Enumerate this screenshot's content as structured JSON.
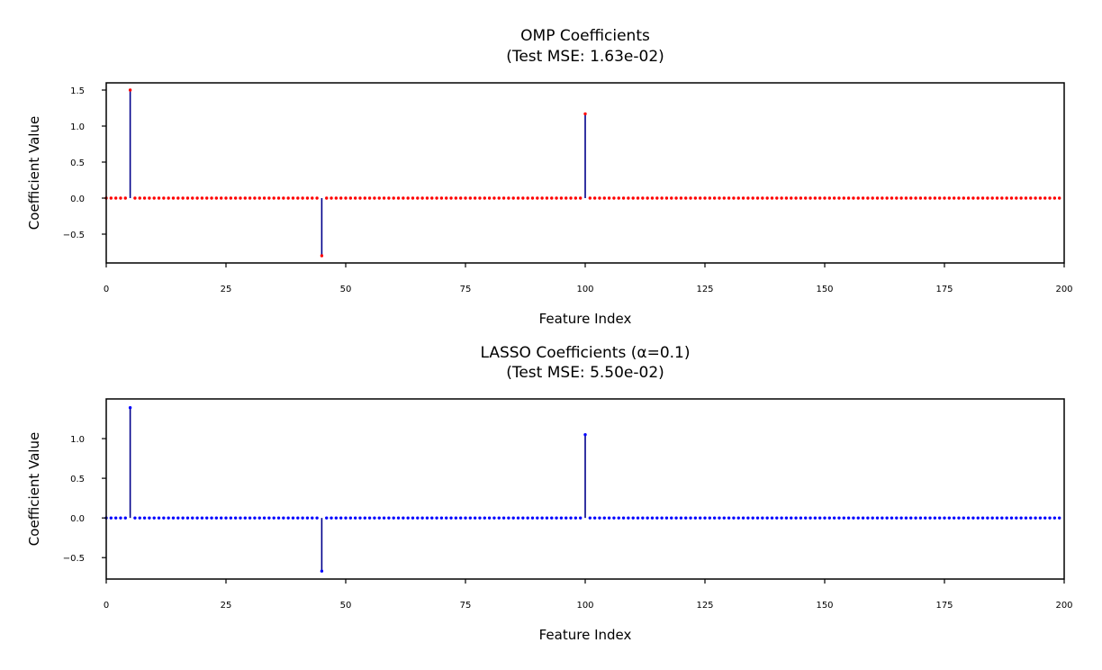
{
  "chart_data": [
    {
      "type": "stem",
      "title": "OMP Coefficients",
      "subtitle": "(Test MSE: 1.63e-02)",
      "xlabel": "Feature Index",
      "ylabel": "Coefficient Value",
      "xlim": [
        0,
        200
      ],
      "ylim": [
        -0.9,
        1.6
      ],
      "xticks": [
        0,
        25,
        50,
        75,
        100,
        125,
        150,
        175,
        200
      ],
      "yticks": [
        -0.5,
        0.0,
        0.5,
        1.0,
        1.5
      ],
      "ytick_labels": [
        "−0.5",
        "0.0",
        "0.5",
        "1.0",
        "1.5"
      ],
      "n_features": 200,
      "nonzero": [
        {
          "index": 5,
          "value": 1.5
        },
        {
          "index": 45,
          "value": -0.8
        },
        {
          "index": 100,
          "value": 1.17
        }
      ],
      "stem_color": "#00008b",
      "marker_color": "#ff0000",
      "grid": false
    },
    {
      "type": "stem",
      "title": "LASSO Coefficients (α=0.1)",
      "subtitle": "(Test MSE: 5.50e-02)",
      "xlabel": "Feature Index",
      "ylabel": "Coefficient Value",
      "xlim": [
        0,
        200
      ],
      "ylim": [
        -0.77,
        1.5
      ],
      "xticks": [
        0,
        25,
        50,
        75,
        100,
        125,
        150,
        175,
        200
      ],
      "yticks": [
        -0.5,
        0.0,
        0.5,
        1.0
      ],
      "ytick_labels": [
        "−0.5",
        "0.0",
        "0.5",
        "1.0"
      ],
      "n_features": 200,
      "nonzero": [
        {
          "index": 5,
          "value": 1.39
        },
        {
          "index": 45,
          "value": -0.67
        },
        {
          "index": 100,
          "value": 1.05
        }
      ],
      "stem_color": "#00008b",
      "marker_color": "#0000ff",
      "grid": false
    }
  ]
}
